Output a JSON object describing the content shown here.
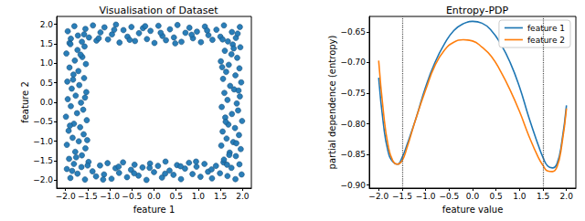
{
  "chart_data": [
    {
      "type": "scatter",
      "title": "Visualisation of Dataset",
      "x_label": "feature 1",
      "y_label": "feature 2",
      "xlim": [
        -2.2,
        2.2
      ],
      "ylim": [
        -2.2,
        2.2
      ],
      "xticks": [
        {
          "value": -2,
          "label": "−2.0"
        },
        {
          "value": -1.5,
          "label": "−1.5"
        },
        {
          "value": -1,
          "label": "−1.0"
        },
        {
          "value": -0.5,
          "label": "−0.5"
        },
        {
          "value": 0,
          "label": "0.0"
        },
        {
          "value": 0.5,
          "label": "0.5"
        },
        {
          "value": 1,
          "label": "1.0"
        },
        {
          "value": 1.5,
          "label": "1.5"
        },
        {
          "value": 2,
          "label": "2.0"
        }
      ],
      "yticks": [
        {
          "value": -2,
          "label": "−2.0"
        },
        {
          "value": -1.5,
          "label": "−1.5"
        },
        {
          "value": -1,
          "label": "−1.0"
        },
        {
          "value": -0.5,
          "label": "−0.5"
        },
        {
          "value": 0,
          "label": "0.0"
        },
        {
          "value": 0.5,
          "label": "0.5"
        },
        {
          "value": 1,
          "label": "1.0"
        },
        {
          "value": 1.5,
          "label": "1.5"
        },
        {
          "value": 2,
          "label": "2.0"
        }
      ],
      "grid": false,
      "series": [
        {
          "color": "#1f77b4",
          "marker": "circle",
          "x": [
            -1.95,
            -1.88,
            -1.8,
            -1.72,
            -1.63,
            -1.55,
            -1.47,
            -1.38,
            -1.3,
            -1.21,
            -1.12,
            -1.04,
            -0.95,
            -0.86,
            -0.78,
            -0.69,
            -0.6,
            -0.51,
            -0.43,
            -0.34,
            -0.25,
            -0.16,
            -0.08,
            0.01,
            0.1,
            0.19,
            0.27,
            0.36,
            0.45,
            0.53,
            0.62,
            0.71,
            0.8,
            0.88,
            0.97,
            1.06,
            1.15,
            1.23,
            1.32,
            1.41,
            1.5,
            1.58,
            1.67,
            1.76,
            1.85,
            1.94,
            -1.91,
            -1.58,
            -1.25,
            -0.9,
            -0.55,
            -0.2,
            0.15,
            0.48,
            0.85,
            1.2,
            1.55,
            1.89,
            -1.97,
            -1.89,
            -1.81,
            -1.73,
            -1.64,
            -1.56,
            -1.48,
            -1.39,
            -1.31,
            -1.22,
            -1.13,
            -1.05,
            -0.96,
            -0.87,
            -0.79,
            -0.7,
            -0.61,
            -0.52,
            -0.44,
            -0.35,
            -0.26,
            -0.17,
            -0.09,
            0.0,
            0.09,
            0.18,
            0.26,
            0.35,
            0.44,
            0.52,
            0.61,
            0.7,
            0.79,
            0.87,
            0.96,
            1.05,
            1.14,
            1.22,
            1.31,
            1.4,
            1.49,
            1.57,
            1.66,
            1.75,
            1.84,
            1.93,
            -1.85,
            -1.5,
            -1.15,
            -0.8,
            -0.45,
            -0.1,
            0.25,
            0.6,
            0.95,
            1.3,
            1.65,
            1.98,
            -1.92,
            -1.63,
            -1.78,
            -1.55,
            -1.97,
            -1.7,
            -1.84,
            -1.59,
            -1.93,
            -1.67,
            -1.81,
            -1.52,
            -1.99,
            -1.74,
            -1.6,
            -1.88,
            -1.65,
            -1.95,
            -1.77,
            -1.53,
            -1.86,
            -1.69,
            -1.96,
            -1.58,
            -1.82,
            -1.71,
            -1.91,
            -1.54,
            -1.79,
            -1.62,
            -1.98,
            -1.73,
            -1.57,
            -1.89,
            -1.76,
            -1.51,
            -1.9,
            -1.56,
            -1.83,
            -1.66,
            1.58,
            1.85,
            1.71,
            1.96,
            1.52,
            1.79,
            1.64,
            1.92,
            1.55,
            1.83,
            1.68,
            1.99,
            1.61,
            1.76,
            1.9,
            1.53,
            1.87,
            1.66,
            1.94,
            1.59,
            1.81,
            1.72,
            1.97,
            1.56,
            1.84,
            1.63,
            1.93,
            1.69,
            1.51,
            1.88,
            1.75,
            1.6,
            1.95,
            1.78,
            1.86,
            1.62,
            1.91,
            1.54,
            1.8,
            1.7
          ],
          "values": [
            1.82,
            1.63,
            1.95,
            1.71,
            1.55,
            1.88,
            1.66,
            1.97,
            1.58,
            1.79,
            1.92,
            1.61,
            1.74,
            1.99,
            1.53,
            1.85,
            1.68,
            1.93,
            1.57,
            1.77,
            1.9,
            1.62,
            1.83,
            1.52,
            1.96,
            1.7,
            1.59,
            1.87,
            1.66,
            1.98,
            1.55,
            1.78,
            1.91,
            1.64,
            1.81,
            1.54,
            1.94,
            1.72,
            1.6,
            1.86,
            1.68,
            1.97,
            1.56,
            1.8,
            1.65,
            1.93,
            1.52,
            1.74,
            1.64,
            1.86,
            1.6,
            1.95,
            1.78,
            1.51,
            1.73,
            1.84,
            1.61,
            1.76,
            -1.71,
            -1.94,
            -1.58,
            -1.83,
            -1.66,
            -1.98,
            -1.53,
            -1.77,
            -1.9,
            -1.62,
            -1.85,
            -1.56,
            -1.96,
            -1.69,
            -1.81,
            -1.54,
            -1.92,
            -1.73,
            -1.6,
            -1.88,
            -1.67,
            -1.99,
            -1.57,
            -1.79,
            -1.63,
            -1.93,
            -1.52,
            -1.75,
            -1.86,
            -1.61,
            -1.97,
            -1.7,
            -1.55,
            -1.84,
            -1.65,
            -1.91,
            -1.58,
            -1.78,
            -1.95,
            -1.63,
            -1.82,
            -1.54,
            -1.89,
            -1.68,
            -1.97,
            -1.59,
            -1.76,
            -1.62,
            -1.98,
            -1.65,
            -1.82,
            -1.68,
            -1.83,
            -1.64,
            -1.52,
            -1.72,
            -1.6,
            -1.85,
            -1.45,
            -1.36,
            -1.27,
            -1.18,
            -1.09,
            -1.0,
            -0.91,
            -0.82,
            -0.73,
            -0.64,
            -0.55,
            -0.46,
            -0.37,
            -0.28,
            -0.19,
            -0.1,
            -0.01,
            0.08,
            0.17,
            0.26,
            0.35,
            0.44,
            0.53,
            0.62,
            0.71,
            0.8,
            0.89,
            0.98,
            1.07,
            1.16,
            1.25,
            1.34,
            1.43,
            1.49,
            -1.41,
            -0.97,
            -0.6,
            0.12,
            0.58,
            1.22,
            -1.47,
            -1.38,
            -1.29,
            -1.2,
            -1.11,
            -1.02,
            -0.93,
            -0.84,
            -0.75,
            -0.66,
            -0.57,
            -0.48,
            -0.39,
            -0.3,
            -0.21,
            -0.12,
            -0.03,
            0.06,
            0.15,
            0.24,
            0.33,
            0.42,
            0.51,
            0.6,
            0.69,
            0.78,
            0.87,
            0.96,
            1.05,
            1.14,
            1.23,
            1.32,
            1.41,
            1.48,
            -1.05,
            -0.5,
            0.3,
            0.9,
            1.38,
            -1.35
          ]
        }
      ]
    },
    {
      "type": "line",
      "title": "Entropy-PDP",
      "x_label": "feature value",
      "y_label": "partial dependence (entropy)",
      "xlim": [
        -2.2,
        2.2
      ],
      "ylim": [
        -0.905,
        -0.625
      ],
      "xticks": [
        {
          "value": -2,
          "label": "−2.0"
        },
        {
          "value": -1.5,
          "label": "−1.5"
        },
        {
          "value": -1,
          "label": "−1.0"
        },
        {
          "value": -0.5,
          "label": "−0.5"
        },
        {
          "value": 0,
          "label": "0.0"
        },
        {
          "value": 0.5,
          "label": "0.5"
        },
        {
          "value": 1,
          "label": "1.0"
        },
        {
          "value": 1.5,
          "label": "1.5"
        },
        {
          "value": 2,
          "label": "2.0"
        }
      ],
      "yticks": [
        {
          "value": -0.9,
          "label": "−0.90"
        },
        {
          "value": -0.85,
          "label": "−0.85"
        },
        {
          "value": -0.8,
          "label": "−0.80"
        },
        {
          "value": -0.75,
          "label": "−0.75"
        },
        {
          "value": -0.7,
          "label": "−0.70"
        },
        {
          "value": -0.65,
          "label": "−0.65"
        }
      ],
      "grid": false,
      "legend": "upper right",
      "vlines": [
        -1.5,
        1.5
      ],
      "x": [
        -2,
        -1.9,
        -1.8,
        -1.7,
        -1.6,
        -1.5,
        -1.4,
        -1.2,
        -1.0,
        -0.8,
        -0.6,
        -0.4,
        -0.2,
        0,
        0.2,
        0.4,
        0.6,
        0.8,
        1.0,
        1.2,
        1.4,
        1.5,
        1.6,
        1.7,
        1.8,
        1.9,
        2.0
      ],
      "series": [
        {
          "name": "feature 1",
          "color": "#1f77b4",
          "line_style": "solid",
          "values": [
            -0.725,
            -0.8,
            -0.845,
            -0.862,
            -0.866,
            -0.855,
            -0.835,
            -0.79,
            -0.74,
            -0.7,
            -0.67,
            -0.648,
            -0.637,
            -0.633,
            -0.636,
            -0.648,
            -0.67,
            -0.7,
            -0.74,
            -0.79,
            -0.835,
            -0.855,
            -0.869,
            -0.872,
            -0.865,
            -0.83,
            -0.77
          ]
        },
        {
          "name": "feature 2",
          "color": "#ff7f0e",
          "line_style": "solid",
          "values": [
            -0.697,
            -0.78,
            -0.835,
            -0.86,
            -0.866,
            -0.86,
            -0.84,
            -0.79,
            -0.745,
            -0.705,
            -0.68,
            -0.667,
            -0.663,
            -0.665,
            -0.675,
            -0.69,
            -0.715,
            -0.745,
            -0.78,
            -0.82,
            -0.855,
            -0.868,
            -0.877,
            -0.878,
            -0.87,
            -0.835,
            -0.775
          ]
        }
      ]
    }
  ]
}
